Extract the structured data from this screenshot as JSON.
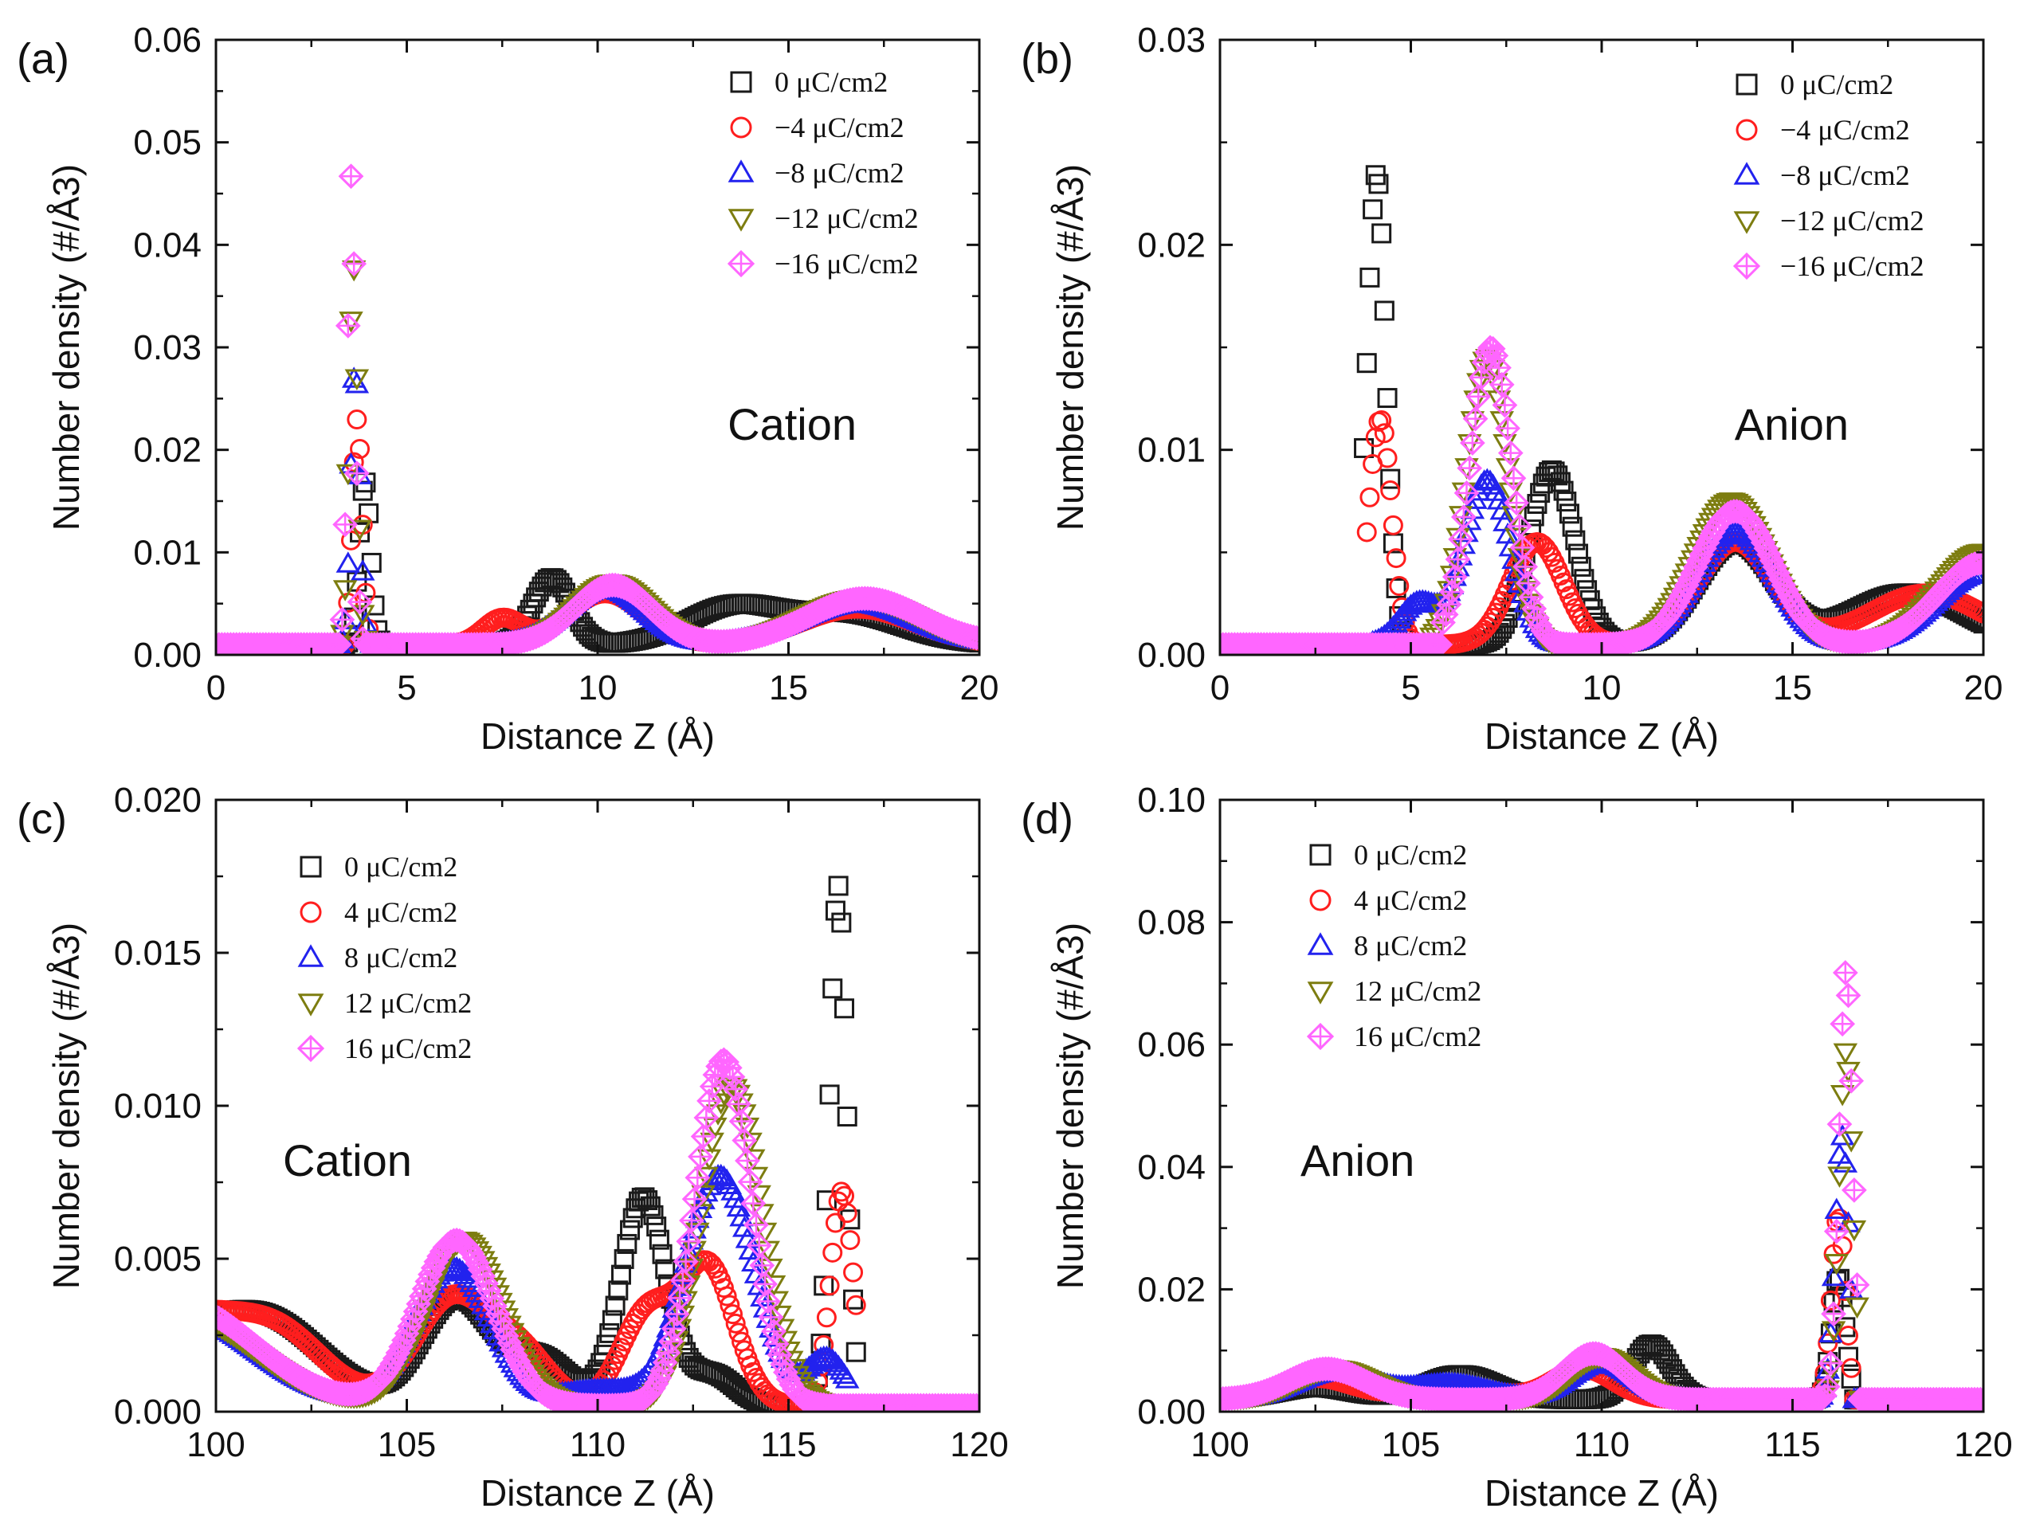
{
  "figure": {
    "colors": {
      "0": "#1a1a1a",
      "4": "#ff1e1e",
      "8": "#2222ee",
      "12": "#7d7d10",
      "16": "#ff66ff"
    },
    "markers": {
      "0": "square",
      "4": "circle",
      "8": "triangle-up",
      "12": "triangle-down",
      "16": "diamond-cross"
    }
  },
  "chart_data": [
    {
      "panel": "(a)",
      "type": "scatter",
      "annotation": "Cation",
      "xlabel": "Distance Z (Å)",
      "ylabel": "Number density (#/Å3)",
      "xlim": [
        0,
        20
      ],
      "ylim": [
        0,
        0.06
      ],
      "xticks": [
        "0",
        "5",
        "10",
        "15",
        "20"
      ],
      "yticks": [
        "0.00",
        "0.01",
        "0.02",
        "0.03",
        "0.04",
        "0.05",
        "0.06"
      ],
      "legend": [
        "0 μC/cm2",
        "−4 μC/cm2",
        "−8 μC/cm2",
        "−12 μC/cm2",
        "−16 μC/cm2"
      ],
      "series": [
        {
          "name": "0 μC/cm2",
          "key": "0",
          "peaks": [
            [
              3.9,
              0.016,
              0.15
            ],
            [
              8.8,
              0.0065,
              0.5
            ],
            [
              13.5,
              0.0035,
              1.2
            ],
            [
              16.5,
              0.003,
              1.5
            ]
          ],
          "base": 0.001,
          "xstart": 3.4
        },
        {
          "name": "−4 μC/cm2",
          "key": "4",
          "peaks": [
            [
              3.7,
              0.022,
              0.13
            ],
            [
              7.5,
              0.0025,
              0.5
            ],
            [
              10.2,
              0.005,
              1.0
            ],
            [
              16.8,
              0.0035,
              1.5
            ]
          ],
          "base": 0.001,
          "xstart": 3.4
        },
        {
          "name": "−8 μC/cm2",
          "key": "8",
          "peaks": [
            [
              3.65,
              0.027,
              0.12
            ],
            [
              10.2,
              0.0055,
              1.0
            ],
            [
              16.8,
              0.004,
              1.5
            ]
          ],
          "base": 0.001,
          "xstart": 3.3
        },
        {
          "name": "−12 μC/cm2",
          "key": "12",
          "peaks": [
            [
              3.6,
              0.037,
              0.11
            ],
            [
              10.4,
              0.006,
              1.0
            ],
            [
              16.9,
              0.0045,
              1.5
            ]
          ],
          "base": 0.001,
          "xstart": 3.3
        },
        {
          "name": "−16 μC/cm2",
          "key": "16",
          "peaks": [
            [
              3.55,
              0.046,
              0.1
            ],
            [
              10.4,
              0.0058,
              1.0
            ],
            [
              17.0,
              0.0045,
              1.5
            ]
          ],
          "base": 0.001,
          "xstart": 3.3
        }
      ]
    },
    {
      "panel": "(b)",
      "type": "scatter",
      "annotation": "Anion",
      "xlabel": "Distance Z (Å)",
      "ylabel": "Number density (#/Å3)",
      "xlim": [
        0,
        20
      ],
      "ylim": [
        0,
        0.03
      ],
      "xticks": [
        "0",
        "5",
        "10",
        "15",
        "20"
      ],
      "yticks": [
        "0.00",
        "0.01",
        "0.02",
        "0.03"
      ],
      "legend": [
        "0 μC/cm2",
        "−4 μC/cm2",
        "−8 μC/cm2",
        "−12 μC/cm2",
        "−16 μC/cm2"
      ],
      "series": [
        {
          "name": "0 μC/cm2",
          "key": "0",
          "peaks": [
            [
              4.1,
              0.023,
              0.25
            ],
            [
              8.7,
              0.0085,
              0.6
            ],
            [
              13.5,
              0.005,
              1.0
            ],
            [
              18.0,
              0.0025,
              1.5
            ]
          ],
          "base": 0.0005,
          "xstart": 3.7
        },
        {
          "name": "−4 μC/cm2",
          "key": "4",
          "peaks": [
            [
              4.2,
              0.011,
              0.3
            ],
            [
              8.3,
              0.005,
              0.7
            ],
            [
              13.5,
              0.005,
              1.0
            ],
            [
              18.5,
              0.0025,
              1.5
            ]
          ],
          "base": 0.0005,
          "xstart": 3.8
        },
        {
          "name": "−8 μC/cm2",
          "key": "8",
          "peaks": [
            [
              5.2,
              0.002,
              0.5
            ],
            [
              7.0,
              0.008,
              0.6
            ],
            [
              13.5,
              0.0055,
              1.0
            ],
            [
              20.0,
              0.0035,
              1.2
            ]
          ],
          "base": 0.0005,
          "xstart": 4.0
        },
        {
          "name": "−12 μC/cm2",
          "key": "12",
          "peaks": [
            [
              7.0,
              0.014,
              0.55
            ],
            [
              13.4,
              0.007,
              1.0
            ],
            [
              20.0,
              0.0045,
              1.2
            ]
          ],
          "base": 0.0005,
          "xstart": 5.5
        },
        {
          "name": "−16 μC/cm2",
          "key": "16",
          "peaks": [
            [
              7.1,
              0.0145,
              0.55
            ],
            [
              13.5,
              0.0065,
              1.0
            ],
            [
              20.0,
              0.004,
              1.2
            ]
          ],
          "base": 0.0005,
          "xstart": 5.8
        }
      ]
    },
    {
      "panel": "(c)",
      "type": "scatter",
      "annotation": "Cation",
      "xlabel": "Distance Z (Å)",
      "ylabel": "Number density (#/Å3)",
      "xlim": [
        100,
        120
      ],
      "ylim": [
        0,
        0.02
      ],
      "xticks": [
        "100",
        "105",
        "110",
        "115",
        "120"
      ],
      "yticks": [
        "0.000",
        "0.005",
        "0.010",
        "0.015",
        "0.020"
      ],
      "legend": [
        "0 μC/cm2",
        "4 μC/cm2",
        "8 μC/cm2",
        "12 μC/cm2",
        "16 μC/cm2"
      ],
      "series": [
        {
          "name": "0 μC/cm2",
          "key": "0",
          "peaks": [
            [
              99.0,
              0.002,
              2.0
            ],
            [
              101.5,
              0.002,
              1.5
            ],
            [
              106.3,
              0.0035,
              0.9
            ],
            [
              108.5,
              0.0015,
              0.8
            ],
            [
              111.2,
              0.0068,
              0.6
            ],
            [
              113.0,
              0.001,
              0.6
            ],
            [
              116.3,
              0.017,
              0.22
            ]
          ],
          "base": 0.0002,
          "xend": 116.8
        },
        {
          "name": "4 μC/cm2",
          "key": "4",
          "peaks": [
            [
              99.0,
              0.003,
              2.0
            ],
            [
              101.8,
              0.0015,
              1.2
            ],
            [
              106.2,
              0.0035,
              1.0
            ],
            [
              108.0,
              0.0015,
              0.8
            ],
            [
              111.3,
              0.003,
              0.7
            ],
            [
              112.9,
              0.0045,
              0.7
            ],
            [
              116.4,
              0.007,
              0.3
            ]
          ],
          "base": 0.0002,
          "xend": 116.8
        },
        {
          "name": "8 μC/cm2",
          "key": "8",
          "peaks": [
            [
              99.0,
              0.003,
              2.0
            ],
            [
              106.2,
              0.0045,
              1.0
            ],
            [
              110.0,
              0.0005,
              1.0
            ],
            [
              113.2,
              0.0075,
              0.9
            ],
            [
              116.0,
              0.0015,
              0.5
            ]
          ],
          "base": 0.0002,
          "xend": 116.6
        },
        {
          "name": "12 μC/cm2",
          "key": "12",
          "peaks": [
            [
              99.0,
              0.003,
              2.0
            ],
            [
              106.5,
              0.0054,
              1.0
            ],
            [
              113.5,
              0.0105,
              0.8
            ]
          ],
          "base": 0.0002,
          "xend": 116.2
        },
        {
          "name": "16 μC/cm2",
          "key": "16",
          "peaks": [
            [
              99.0,
              0.0033,
              2.0
            ],
            [
              106.3,
              0.0054,
              1.0
            ],
            [
              113.3,
              0.0113,
              0.75
            ]
          ],
          "base": 0.0002,
          "xend": 116.0
        }
      ]
    },
    {
      "panel": "(d)",
      "type": "scatter",
      "annotation": "Anion",
      "xlabel": "Distance Z (Å)",
      "ylabel": "Number density (#/Å3)",
      "xlim": [
        100,
        120
      ],
      "ylim": [
        0,
        0.1
      ],
      "xticks": [
        "100",
        "105",
        "110",
        "115",
        "120"
      ],
      "yticks": [
        "0.00",
        "0.02",
        "0.04",
        "0.06",
        "0.08",
        "0.10"
      ],
      "legend": [
        "0 μC/cm2",
        "4 μC/cm2",
        "8 μC/cm2",
        "12 μC/cm2",
        "16 μC/cm2"
      ],
      "series": [
        {
          "name": "0 μC/cm2",
          "key": "0",
          "peaks": [
            [
              102.5,
              0.002,
              1.0
            ],
            [
              106.3,
              0.004,
              0.9
            ],
            [
              111.3,
              0.009,
              0.5
            ],
            [
              116.2,
              0.02,
              0.18
            ]
          ],
          "base": 0.002,
          "xend": 116.6
        },
        {
          "name": "4 μC/cm2",
          "key": "4",
          "peaks": [
            [
              102.5,
              0.0035,
              1.0
            ],
            [
              106.0,
              0.0025,
              1.0
            ],
            [
              109.5,
              0.005,
              0.8
            ],
            [
              116.2,
              0.03,
              0.18
            ]
          ],
          "base": 0.002,
          "xend": 116.6
        },
        {
          "name": "8 μC/cm2",
          "key": "8",
          "peaks": [
            [
              103.0,
              0.0045,
              1.0
            ],
            [
              106.0,
              0.0025,
              1.0
            ],
            [
              110.0,
              0.006,
              0.8
            ],
            [
              116.3,
              0.043,
              0.18
            ]
          ],
          "base": 0.002,
          "xend": 116.6
        },
        {
          "name": "12 μC/cm2",
          "key": "12",
          "peaks": [
            [
              103.0,
              0.005,
              1.0
            ],
            [
              110.0,
              0.007,
              0.8
            ],
            [
              116.4,
              0.057,
              0.18
            ]
          ],
          "base": 0.002,
          "xend": 116.7
        },
        {
          "name": "16 μC/cm2",
          "key": "16",
          "peaks": [
            [
              102.8,
              0.005,
              1.0
            ],
            [
              109.8,
              0.0075,
              0.8
            ],
            [
              116.4,
              0.07,
              0.18
            ]
          ],
          "base": 0.002,
          "xend": 116.7
        }
      ]
    }
  ]
}
